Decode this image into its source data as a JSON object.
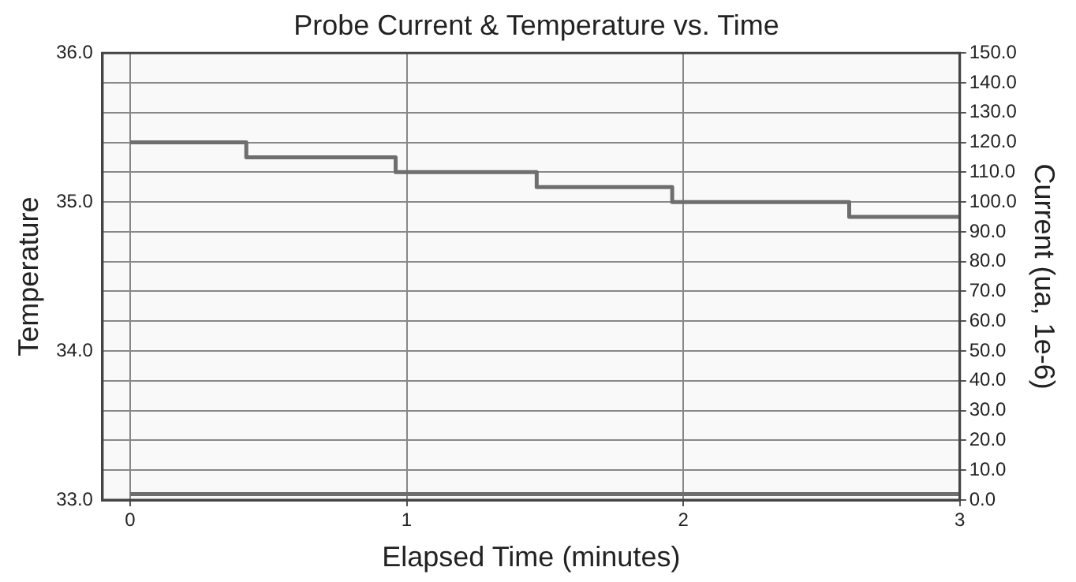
{
  "chart_data": {
    "type": "step",
    "title": "Probe Current & Temperature vs. Time",
    "xlabel": "Elapsed Time (minutes)",
    "ylabel": "Temperature",
    "y2label": "Current (ua, 1e-6)",
    "xlim": [
      -0.1,
      3
    ],
    "xticks": [
      0,
      1,
      2,
      3
    ],
    "ylim": [
      33,
      36
    ],
    "yticks": [
      {
        "value": 33,
        "label": "33.0"
      },
      {
        "value": 34,
        "label": "34.0"
      },
      {
        "value": 35,
        "label": "35.0"
      },
      {
        "value": 36,
        "label": "36.0"
      }
    ],
    "y2lim": [
      0,
      150
    ],
    "y2ticks": [
      {
        "value": 0,
        "label": "0.0"
      },
      {
        "value": 10,
        "label": "10.0"
      },
      {
        "value": 20,
        "label": "20.0"
      },
      {
        "value": 30,
        "label": "30.0"
      },
      {
        "value": 40,
        "label": "40.0"
      },
      {
        "value": 50,
        "label": "50.0"
      },
      {
        "value": 60,
        "label": "60.0"
      },
      {
        "value": 70,
        "label": "70.0"
      },
      {
        "value": 80,
        "label": "80.0"
      },
      {
        "value": 90,
        "label": "90.0"
      },
      {
        "value": 100,
        "label": "100.0"
      },
      {
        "value": 110,
        "label": "110.0"
      },
      {
        "value": 120,
        "label": "120.0"
      },
      {
        "value": 130,
        "label": "130.0"
      },
      {
        "value": 140,
        "label": "140.0"
      },
      {
        "value": 150,
        "label": "150.0"
      }
    ],
    "grid": true,
    "legend": false,
    "line_style": "solid",
    "marker": "none",
    "series": [
      {
        "color": "#6e6e6e",
        "x": [
          0,
          0.42,
          0.96,
          1.47,
          1.96,
          2.6,
          3
        ],
        "values": [
          35.4,
          35.3,
          35.2,
          35.1,
          35.0,
          34.9,
          34.9
        ]
      },
      {
        "color": "#6e6e6e",
        "axis": "y2",
        "x": [
          0,
          3
        ],
        "values": [
          2,
          2
        ]
      }
    ]
  }
}
